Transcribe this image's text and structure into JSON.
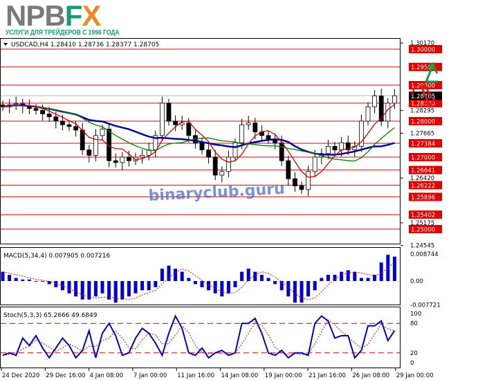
{
  "brand": {
    "logo_gray": "NPB",
    "logo_green": "F",
    "logo_orange": "X",
    "slogan": "УСЛУГИ ДЛЯ ТРЕЙДЕРОВ С 1996 ГОДА",
    "colors": {
      "gray": "#7a7a7a",
      "green": "#1a9a78",
      "orange": "#f08a24"
    }
  },
  "watermark": "binaryclub.guru",
  "chart_data": [
    {
      "type": "candlestick",
      "title": "USDCAD,H4  1.28410 1.28736 1.28377 1.28705",
      "symbol": "USDCAD",
      "timeframe": "H4",
      "ohlc": {
        "open": 1.2841,
        "high": 1.28736,
        "low": 1.28377,
        "close": 1.28705
      },
      "current_price": "1.28705",
      "ylim": [
        1.24545,
        1.3017
      ],
      "price_ticks": [
        "1.30170",
        "1.28295",
        "1.27665",
        "1.26420",
        "1.25175",
        "1.24545"
      ],
      "levels": [
        "1.30000",
        "1.29506",
        "1.29000",
        "1.28500",
        "1.28000",
        "1.27384",
        "1.27000",
        "1.26641",
        "1.26222",
        "1.25896",
        "1.25402",
        "1.25000"
      ],
      "level_color": "#e00000",
      "moving_averages": [
        {
          "color": "#0000a0",
          "period": 20
        },
        {
          "color": "#008000",
          "period": 12
        },
        {
          "color": "#d00000",
          "period": 5
        }
      ],
      "closes": [
        1.284,
        1.2845,
        1.2848,
        1.2842,
        1.2835,
        1.283,
        1.282,
        1.2812,
        1.28,
        1.279,
        1.2785,
        1.2775,
        1.272,
        1.2705,
        1.276,
        1.2778,
        1.269,
        1.2685,
        1.27,
        1.269,
        1.27,
        1.2705,
        1.272,
        1.276,
        1.285,
        1.28,
        1.279,
        1.2795,
        1.276,
        1.274,
        1.272,
        1.27,
        1.265,
        1.266,
        1.27,
        1.274,
        1.279,
        1.2795,
        1.277,
        1.276,
        1.275,
        1.274,
        1.269,
        1.264,
        1.262,
        1.261,
        1.266,
        1.27,
        1.271,
        1.273,
        1.272,
        1.274,
        1.272,
        1.273,
        1.28,
        1.284,
        1.287,
        1.28,
        1.285,
        1.28705
      ],
      "forecast": {
        "up_color": "#1a9a3a",
        "down_color": "#e02020",
        "label": "?"
      }
    },
    {
      "type": "bar",
      "title": "MACD(5,34,4) 0.007905 0.007216",
      "ylim": [
        -0.007721,
        0.008744
      ],
      "ticks": [
        "0.008744",
        "0.00",
        "-0.007721"
      ],
      "bar_color": "#0000d0",
      "signal_color": "#e00000",
      "values": [
        0.003,
        0.002,
        0.001,
        0.0005,
        0.0005,
        0,
        0,
        -0.001,
        -0.002,
        -0.003,
        -0.004,
        -0.005,
        -0.006,
        -0.006,
        -0.005,
        -0.004,
        -0.006,
        -0.007,
        -0.006,
        -0.005,
        -0.004,
        -0.003,
        -0.003,
        -0.002,
        0.004,
        0.005,
        0.004,
        0.003,
        0.001,
        -0.001,
        -0.002,
        -0.003,
        -0.004,
        -0.005,
        -0.004,
        -0.002,
        0.003,
        0.004,
        0.003,
        0.002,
        0.001,
        -0.001,
        -0.003,
        -0.005,
        -0.007,
        -0.007,
        -0.005,
        -0.003,
        0.001,
        0.002,
        0.002,
        0.003,
        0.0035,
        0.003,
        0.001,
        0.001,
        0.002,
        0.006,
        0.0085,
        0.007905
      ]
    },
    {
      "type": "line",
      "title": "Stoch(5,3,3) 65.2666 49.6849",
      "ylim": [
        0,
        100
      ],
      "ticks": [
        "100",
        "80",
        "20",
        "0"
      ],
      "levels": [
        80,
        20
      ],
      "main_color": "#0000c0",
      "signal_color": "#e00000",
      "values": [
        15,
        20,
        15,
        50,
        35,
        55,
        30,
        10,
        30,
        50,
        35,
        10,
        25,
        65,
        10,
        60,
        80,
        55,
        15,
        20,
        50,
        70,
        60,
        40,
        15,
        60,
        95,
        70,
        20,
        15,
        30,
        10,
        20,
        25,
        15,
        20,
        80,
        80,
        90,
        60,
        20,
        15,
        25,
        10,
        20,
        20,
        15,
        80,
        95,
        85,
        50,
        55,
        55,
        10,
        25,
        75,
        75,
        85,
        45,
        65.27
      ]
    }
  ],
  "x_labels": [
    "24 Dec 2020",
    "29 Dec 16:00",
    "4 Jan 08:00",
    "7 Jan 00:00",
    "11 Jan 16:00",
    "14 Jan 08:00",
    "19 Jan 00:00",
    "21 Jan 16:00",
    "26 Jan 08:00",
    "29 Jan 00:00"
  ]
}
